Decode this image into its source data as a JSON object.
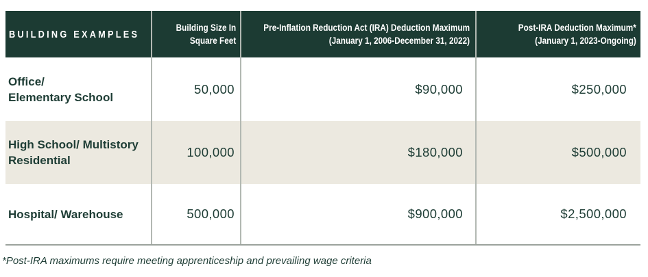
{
  "theme": {
    "header_bg": "#1C3B33",
    "header_text": "#FFFFFF",
    "body_text": "#1E3D35",
    "row_alt_bg": "#ECE9E0",
    "divider": "#B2B8B2",
    "bottom_border": "#9BA29C",
    "page_bg": "#FFFFFF"
  },
  "table": {
    "headers": [
      {
        "lines": [
          "BUILDING EXAMPLES"
        ]
      },
      {
        "lines": [
          "Building Size In",
          "Square Feet"
        ]
      },
      {
        "lines": [
          "Pre-Inflation Reduction Act (IRA) Deduction Maximum",
          "(January 1, 2006-December 31, 2022)"
        ]
      },
      {
        "lines": [
          "Post-IRA Deduction Maximum*",
          "(January 1, 2023-Ongoing)"
        ]
      }
    ],
    "rows": [
      {
        "example_lines": [
          "Office/",
          "Elementary School"
        ],
        "size_sqft": "50,000",
        "pre_ira_max": "$90,000",
        "post_ira_max": "$250,000"
      },
      {
        "example_lines": [
          "High School/ Multistory",
          "Residential"
        ],
        "size_sqft": "100,000",
        "pre_ira_max": "$180,000",
        "post_ira_max": "$500,000"
      },
      {
        "example_lines": [
          "Hospital/ Warehouse"
        ],
        "size_sqft": "500,000",
        "pre_ira_max": "$900,000",
        "post_ira_max": "$2,500,000"
      }
    ]
  },
  "footnote": "*Post-IRA maximums require meeting apprenticeship and prevailing wage criteria",
  "chart_data": {
    "type": "table",
    "title": "Building Examples — Section 179D Deduction Maximums",
    "columns": [
      "Building Examples",
      "Building Size In Square Feet",
      "Pre-Inflation Reduction Act (IRA) Deduction Maximum (January 1, 2006-December 31, 2022)",
      "Post-IRA Deduction Maximum* (January 1, 2023-Ongoing)"
    ],
    "rows": [
      [
        "Office/ Elementary School",
        50000,
        90000,
        250000
      ],
      [
        "High School/ Multistory Residential",
        100000,
        180000,
        500000
      ],
      [
        "Hospital/ Warehouse",
        500000,
        900000,
        2500000
      ]
    ],
    "value_format": {
      "size": "thousands-comma",
      "maximums": "USD"
    },
    "footnote": "*Post-IRA maximums require meeting apprenticeship and prevailing wage criteria"
  }
}
